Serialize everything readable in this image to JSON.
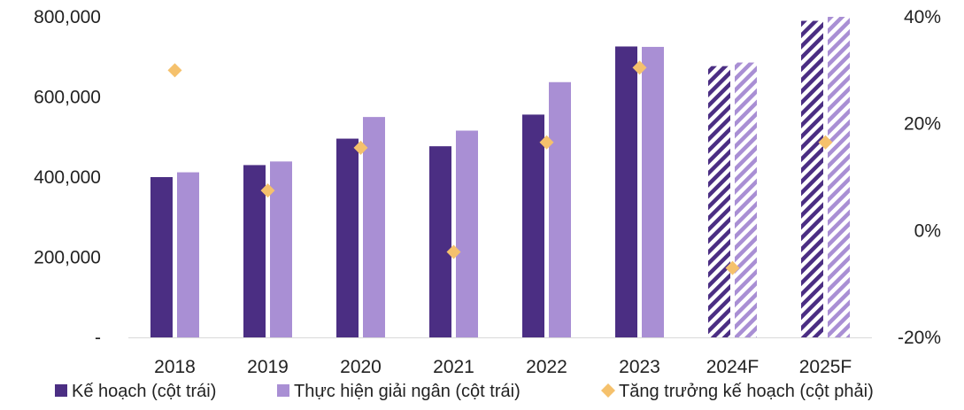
{
  "chart_data": {
    "type": "bar",
    "categories": [
      "2018",
      "2019",
      "2020",
      "2021",
      "2022",
      "2023",
      "2024F",
      "2025F"
    ],
    "forecast_categories": [
      "2024F",
      "2025F"
    ],
    "series": [
      {
        "name": "Kế hoạch (cột trái)",
        "type": "bar",
        "axis": "left",
        "color": "#4b2e83",
        "values": [
          400000,
          430000,
          496000,
          477000,
          556000,
          726000,
          677000,
          790000
        ]
      },
      {
        "name": "Thực hiện giải ngân (cột trái)",
        "type": "bar",
        "axis": "left",
        "color": "#a98fd4",
        "values": [
          412000,
          439000,
          550000,
          516000,
          637000,
          725000,
          686000,
          800000
        ]
      },
      {
        "name": "Tăng trưởng kế hoạch (cột phải)",
        "type": "scatter",
        "marker": "diamond",
        "axis": "right",
        "color": "#f5c16c",
        "values": [
          0.3,
          0.075,
          0.155,
          -0.04,
          0.165,
          0.305,
          -0.07,
          0.165
        ]
      }
    ],
    "y_left": {
      "range": [
        0,
        800000
      ],
      "ticks": [
        0,
        200000,
        400000,
        600000,
        800000
      ],
      "tick_labels": [
        "-",
        "200,000",
        "400,000",
        "600,000",
        "800,000"
      ]
    },
    "y_right": {
      "range": [
        -0.2,
        0.4
      ],
      "ticks": [
        -0.2,
        0.0,
        0.2,
        0.4
      ],
      "tick_labels": [
        "-20%",
        "0%",
        "20%",
        "40%"
      ]
    },
    "grid": false,
    "legend_position": "bottom"
  }
}
